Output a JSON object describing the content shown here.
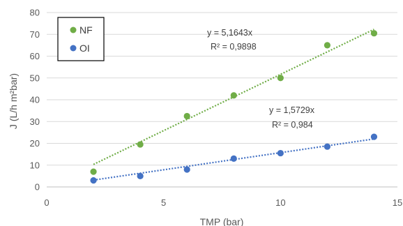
{
  "chart_data": {
    "type": "scatter",
    "xlabel": "TMP (bar)",
    "ylabel": "J (L/h m²bar)",
    "xlim": [
      0,
      15
    ],
    "ylim": [
      0,
      80
    ],
    "x_ticks": [
      "0",
      "5",
      "10",
      "15"
    ],
    "y_ticks": [
      "0",
      "10",
      "20",
      "30",
      "40",
      "50",
      "60",
      "70",
      "80"
    ],
    "grid": "horizontal",
    "legend_position": "top-left",
    "series": [
      {
        "name": "NF",
        "color": "#70ad47",
        "x": [
          2,
          4,
          6,
          8,
          10,
          12,
          14
        ],
        "y": [
          7,
          19.5,
          32.5,
          42,
          50,
          65,
          70.5
        ],
        "trendline": {
          "slope": 5.1643,
          "x_range": [
            2,
            14
          ],
          "equation": "y = 5,1643x",
          "r_squared": "R² = 0,9898"
        }
      },
      {
        "name": "OI",
        "color": "#4472c4",
        "x": [
          2,
          4,
          6,
          8,
          10,
          12,
          14
        ],
        "y": [
          3,
          5,
          8,
          13,
          15.5,
          18.5,
          23
        ],
        "trendline": {
          "slope": 1.5729,
          "x_range": [
            2,
            14
          ],
          "equation": "y = 1,5729x",
          "r_squared": "R² = 0,984"
        }
      }
    ]
  }
}
